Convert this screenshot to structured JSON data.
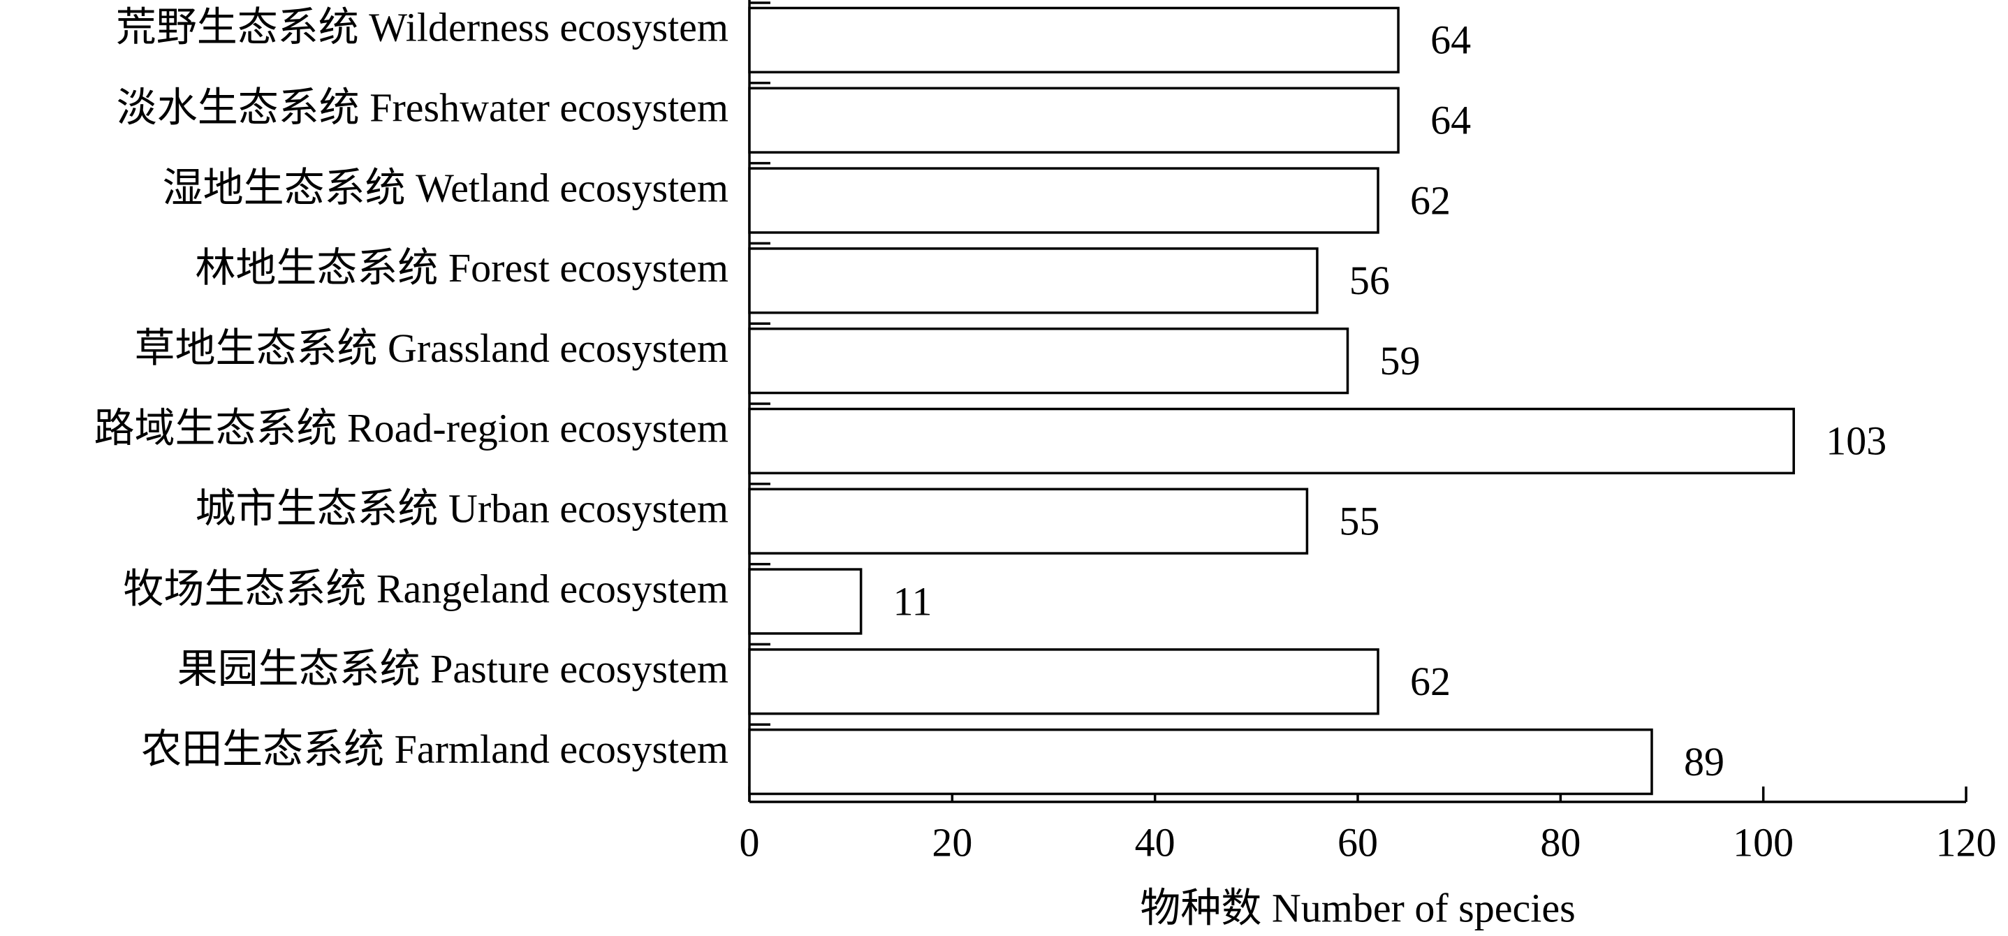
{
  "chart_data": {
    "type": "barh",
    "categories": [
      "荒野生态系统 Wilderness ecosystem",
      "淡水生态系统 Freshwater ecosystem",
      "湿地生态系统 Wetland ecosystem",
      "林地生态系统 Forest ecosystem",
      "草地生态系统 Grassland ecosystem",
      "路域生态系统 Road-region ecosystem",
      "城市生态系统 Urban ecosystem",
      "牧场生态系统 Rangeland ecosystem",
      "果园生态系统 Pasture ecosystem",
      "农田生态系统 Farmland ecosystem"
    ],
    "values": [
      64,
      64,
      62,
      56,
      59,
      103,
      55,
      11,
      62,
      89
    ],
    "color": "#ffffff",
    "x_label": "物种数 Number of species",
    "xlim": [
      0,
      120
    ],
    "xticks": [
      0,
      20,
      40,
      60,
      80,
      100,
      120
    ]
  }
}
